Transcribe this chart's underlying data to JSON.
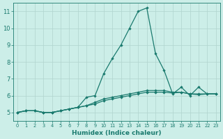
{
  "x": [
    0,
    1,
    2,
    3,
    4,
    5,
    6,
    7,
    8,
    9,
    10,
    11,
    12,
    13,
    14,
    15,
    16,
    17,
    18,
    19,
    20,
    21,
    22,
    23
  ],
  "line1": [
    5.0,
    5.1,
    5.1,
    5.0,
    5.0,
    5.1,
    5.2,
    5.3,
    5.9,
    6.0,
    7.3,
    8.2,
    9.0,
    10.0,
    11.0,
    11.2,
    8.5,
    7.5,
    6.1,
    6.5,
    6.0,
    6.5,
    6.1,
    6.1
  ],
  "line2": [
    5.0,
    5.1,
    5.1,
    5.0,
    5.0,
    5.1,
    5.2,
    5.3,
    5.4,
    5.6,
    5.8,
    5.9,
    6.0,
    6.1,
    6.2,
    6.3,
    6.3,
    6.3,
    6.2,
    6.2,
    6.1,
    6.1,
    6.1,
    6.1
  ],
  "line3": [
    5.0,
    5.1,
    5.1,
    5.0,
    5.0,
    5.1,
    5.2,
    5.3,
    5.4,
    5.5,
    5.7,
    5.8,
    5.9,
    6.0,
    6.1,
    6.2,
    6.2,
    6.2,
    6.15,
    6.2,
    6.1,
    6.05,
    6.1,
    6.1
  ],
  "line_color": "#1a7a6e",
  "bg_color": "#cceee8",
  "grid_color": "#b0d4ce",
  "xlabel": "Humidex (Indice chaleur)",
  "ylim": [
    4.5,
    11.5
  ],
  "xlim": [
    -0.5,
    23.5
  ],
  "yticks": [
    5,
    6,
    7,
    8,
    9,
    10,
    11
  ],
  "xticks": [
    0,
    1,
    2,
    3,
    4,
    5,
    6,
    7,
    8,
    9,
    10,
    11,
    12,
    13,
    14,
    15,
    16,
    17,
    18,
    19,
    20,
    21,
    22,
    23
  ],
  "xlabel_fontsize": 6.5,
  "tick_fontsize_x": 4.8,
  "tick_fontsize_y": 6.0,
  "linewidth": 0.9,
  "markersize": 2.2
}
